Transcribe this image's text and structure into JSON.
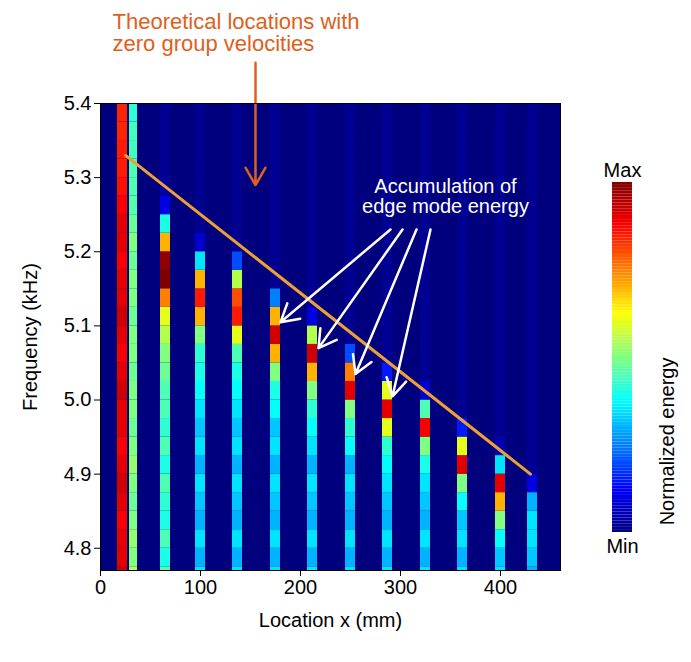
{
  "chart_data": {
    "type": "heatmap",
    "x_label": "Location x (mm)",
    "y_label": "Frequency (kHz)",
    "xlim": [
      0,
      460
    ],
    "xticks": [
      0,
      100,
      200,
      300,
      400
    ],
    "ylim": [
      4.77,
      5.4
    ],
    "yticks": [
      4.8,
      4.9,
      {
        "value": 5,
        "label": "5.0"
      },
      5.1,
      5.2,
      5.3,
      5.4
    ],
    "y_bins": [
      4.75,
      4.775,
      4.8,
      4.825,
      4.85,
      4.875,
      4.9,
      4.925,
      4.95,
      4.975,
      5.0,
      5.025,
      5.05,
      5.075,
      5.1,
      5.125,
      5.15,
      5.175,
      5.2,
      5.225,
      5.25,
      5.275,
      5.3,
      5.325,
      5.35,
      5.375,
      5.4
    ],
    "columns": [
      {
        "x1": 17,
        "x2": 27,
        "values": [
          0.92,
          0.9,
          0.9,
          0.88,
          0.9,
          0.92,
          0.9,
          0.88,
          0.9,
          0.9,
          0.92,
          0.9,
          0.88,
          0.9,
          0.92,
          0.9,
          0.9,
          0.88,
          0.9,
          0.9,
          0.88,
          0.86,
          0.85,
          0.85,
          0.84,
          0.84
        ]
      },
      {
        "x1": 29,
        "x2": 37,
        "values": [
          0.55,
          0.5,
          0.52,
          0.5,
          0.48,
          0.5,
          0.52,
          0.5,
          0.48,
          0.5,
          0.5,
          0.48,
          0.5,
          0.5,
          0.48,
          0.5,
          0.5,
          0.48,
          0.5,
          0.48,
          0.46,
          0.45,
          0.45,
          0.44,
          0.44,
          0.42
        ]
      },
      {
        "x1": 60,
        "x2": 70,
        "values": [
          0.45,
          0.4,
          0.45,
          0.4,
          0.42,
          0.45,
          0.4,
          0.45,
          0.42,
          0.45,
          0.45,
          0.48,
          0.5,
          0.55,
          0.6,
          0.75,
          1.0,
          0.98,
          0.7,
          0.4,
          0.1,
          0.03,
          0.02,
          0.02,
          0.02,
          0.02
        ]
      },
      {
        "x1": 95,
        "x2": 105,
        "values": [
          0.35,
          0.3,
          0.35,
          0.3,
          0.32,
          0.35,
          0.3,
          0.35,
          0.32,
          0.35,
          0.38,
          0.4,
          0.42,
          0.5,
          0.7,
          0.85,
          0.7,
          0.35,
          0.08,
          0.02,
          0.02,
          0.02,
          0.02,
          0.02,
          0.02,
          0.02
        ]
      },
      {
        "x1": 132,
        "x2": 142,
        "values": [
          0.35,
          0.3,
          0.35,
          0.3,
          0.32,
          0.35,
          0.3,
          0.35,
          0.32,
          0.35,
          0.38,
          0.4,
          0.45,
          0.6,
          0.85,
          0.8,
          0.55,
          0.2,
          0.02,
          0.02,
          0.02,
          0.02,
          0.02,
          0.02,
          0.02,
          0.02
        ]
      },
      {
        "x1": 170,
        "x2": 180,
        "values": [
          0.35,
          0.3,
          0.35,
          0.3,
          0.32,
          0.35,
          0.3,
          0.35,
          0.32,
          0.38,
          0.4,
          0.5,
          0.7,
          0.92,
          0.7,
          0.25,
          0.02,
          0.02,
          0.02,
          0.02,
          0.02,
          0.02,
          0.02,
          0.02,
          0.02,
          0.02
        ]
      },
      {
        "x1": 207,
        "x2": 217,
        "values": [
          0.35,
          0.3,
          0.35,
          0.3,
          0.32,
          0.35,
          0.3,
          0.35,
          0.38,
          0.42,
          0.5,
          0.7,
          0.92,
          0.55,
          0.1,
          0.02,
          0.02,
          0.02,
          0.02,
          0.02,
          0.02,
          0.02,
          0.02,
          0.02,
          0.02,
          0.02
        ]
      },
      {
        "x1": 245,
        "x2": 255,
        "values": [
          0.35,
          0.3,
          0.35,
          0.3,
          0.32,
          0.35,
          0.3,
          0.38,
          0.42,
          0.5,
          0.9,
          0.75,
          0.2,
          0.02,
          0.02,
          0.02,
          0.02,
          0.02,
          0.02,
          0.02,
          0.02,
          0.02,
          0.02,
          0.02,
          0.02,
          0.02
        ]
      },
      {
        "x1": 282,
        "x2": 292,
        "values": [
          0.35,
          0.3,
          0.35,
          0.3,
          0.32,
          0.35,
          0.38,
          0.42,
          0.6,
          0.9,
          0.6,
          0.15,
          0.02,
          0.02,
          0.02,
          0.02,
          0.02,
          0.02,
          0.02,
          0.02,
          0.02,
          0.02,
          0.02,
          0.02,
          0.02,
          0.02
        ]
      },
      {
        "x1": 320,
        "x2": 330,
        "values": [
          0.35,
          0.3,
          0.35,
          0.3,
          0.32,
          0.35,
          0.4,
          0.5,
          0.88,
          0.45,
          0.08,
          0.02,
          0.02,
          0.02,
          0.02,
          0.02,
          0.02,
          0.02,
          0.02,
          0.02,
          0.02,
          0.02,
          0.02,
          0.02,
          0.02,
          0.02
        ]
      },
      {
        "x1": 357,
        "x2": 367,
        "values": [
          0.35,
          0.3,
          0.35,
          0.32,
          0.38,
          0.5,
          0.9,
          0.6,
          0.15,
          0.02,
          0.02,
          0.02,
          0.02,
          0.02,
          0.02,
          0.02,
          0.02,
          0.02,
          0.02,
          0.02,
          0.02,
          0.02,
          0.02,
          0.02,
          0.02,
          0.02
        ]
      },
      {
        "x1": 395,
        "x2": 405,
        "values": [
          0.35,
          0.32,
          0.38,
          0.5,
          0.7,
          0.9,
          0.35,
          0.05,
          0.02,
          0.02,
          0.02,
          0.02,
          0.02,
          0.02,
          0.02,
          0.02,
          0.02,
          0.02,
          0.02,
          0.02,
          0.02,
          0.02,
          0.02,
          0.02,
          0.02,
          0.02
        ]
      },
      {
        "x1": 427,
        "x2": 437,
        "values": [
          0.3,
          0.32,
          0.35,
          0.35,
          0.3,
          0.1,
          0.02,
          0.02,
          0.02,
          0.02,
          0.02,
          0.02,
          0.02,
          0.02,
          0.02,
          0.02,
          0.02,
          0.02,
          0.02,
          0.02,
          0.02,
          0.02,
          0.02,
          0.02,
          0.02,
          0.02
        ]
      }
    ],
    "colorbar": {
      "label": "Normalized energy",
      "range": [
        0,
        1
      ],
      "ticks": [
        {
          "value": 0,
          "label": "Min"
        },
        {
          "value": 1,
          "label": "Max"
        }
      ]
    },
    "theory_line": {
      "x": [
        25,
        430
      ],
      "y": [
        5.33,
        4.9
      ],
      "color": "#f0a030"
    },
    "annotations": [
      {
        "text": "Theoretical locations with zero group velocities",
        "color": "#e0601b",
        "x": 12,
        "y": 5.495,
        "arrows": [
          {
            "x1": 155,
            "y1": 5.455,
            "x2": 155,
            "y2": 5.29
          }
        ]
      },
      {
        "text": "Accumulation of edge mode energy",
        "color": "#ffffff",
        "x": 345,
        "y": 5.275,
        "arrows": [
          {
            "x1": 290,
            "y1": 5.23,
            "x2": 180,
            "y2": 5.105
          },
          {
            "x1": 302,
            "y1": 5.23,
            "x2": 218,
            "y2": 5.07
          },
          {
            "x1": 316,
            "y1": 5.23,
            "x2": 255,
            "y2": 5.035
          },
          {
            "x1": 330,
            "y1": 5.23,
            "x2": 292,
            "y2": 5.005
          }
        ]
      }
    ]
  }
}
